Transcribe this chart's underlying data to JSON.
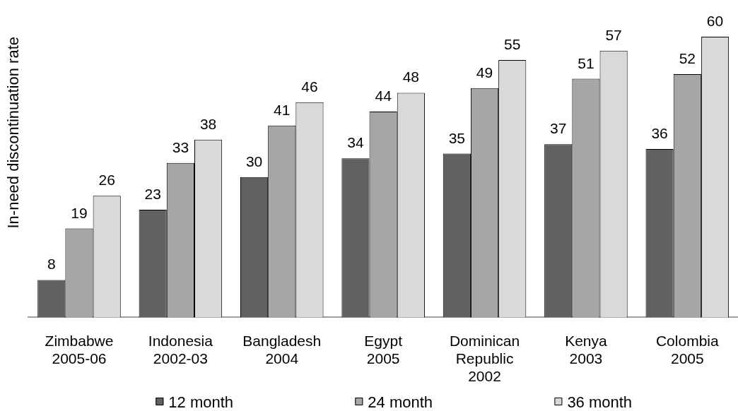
{
  "chart_data": {
    "type": "bar",
    "ylabel": "In-need discontinuation rate",
    "categories": [
      "Zimbabwe 2005-06",
      "Indonesia 2002-03",
      "Bangladesh 2004",
      "Egypt 2005",
      "Dominican Republic 2002",
      "Kenya 2003",
      "Colombia 2005"
    ],
    "series": [
      {
        "name": "12 month",
        "color": "#616161",
        "values": [
          8,
          23,
          30,
          34,
          35,
          37,
          36
        ]
      },
      {
        "name": "24 month",
        "color": "#a6a6a6",
        "values": [
          19,
          33,
          41,
          44,
          49,
          51,
          52
        ]
      },
      {
        "name": "36 month",
        "color": "#d9d9d9",
        "values": [
          26,
          38,
          46,
          48,
          55,
          57,
          60
        ]
      }
    ],
    "ylim": [
      0,
      60
    ],
    "data_labels": true,
    "legend": "bottom"
  }
}
